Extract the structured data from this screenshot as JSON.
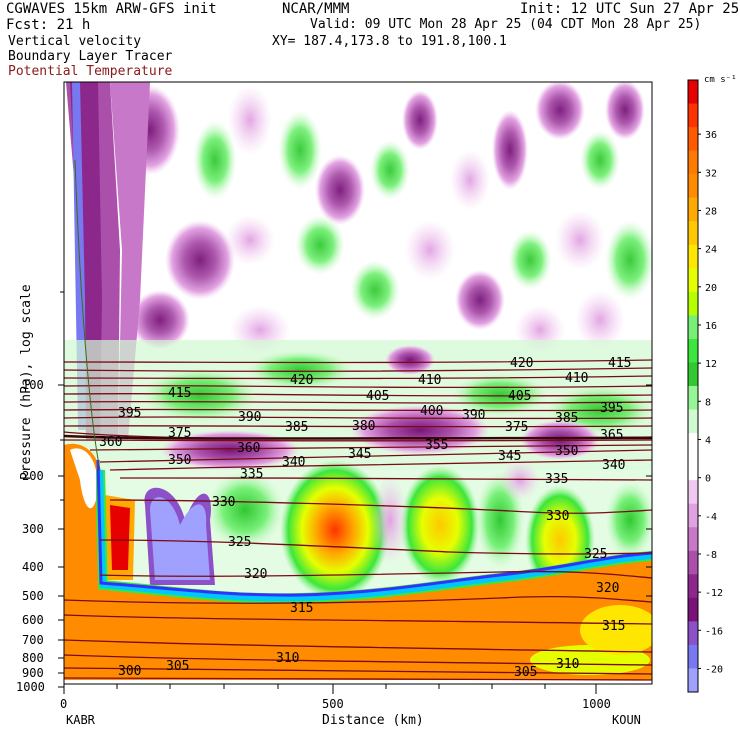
{
  "header": {
    "left_line1": "CGWAVES 15km ARW-GFS init",
    "left_line2": "Fcst:   21 h",
    "center_line1": "NCAR/MMM",
    "right_line1": "Init: 12 UTC Sun 27 Apr 25",
    "right_line2": "Valid: 09 UTC Mon 28 Apr 25 (04 CDT Mon 28 Apr 25)",
    "field1": "Vertical velocity",
    "field2": "Boundary Layer Tracer",
    "field3": "Potential Temperature",
    "xy": "XY= 187.4,173.8 to 191.8,100.1"
  },
  "colors": {
    "potential_temperature": "#7a0a14",
    "plot_border": "#000000"
  },
  "chart_data": {
    "type": "heatmap",
    "title": "CGWAVES 15km ARW-GFS init",
    "xlabel": "Distance (km)",
    "ylabel": "Pressure (hPa), log scale",
    "x_ticks": [
      "0",
      "500",
      "1000"
    ],
    "x_endpoints": {
      "left": "KABR",
      "right": "KOUN"
    },
    "y_ticks": [
      "100",
      "200",
      "300",
      "400",
      "500",
      "600",
      "700",
      "800",
      "900",
      "1000"
    ],
    "colorbar": {
      "unit": "cm s⁻¹",
      "labels": [
        "36",
        "32",
        "28",
        "24",
        "20",
        "16",
        "12",
        "8",
        "4",
        "0",
        "-4",
        "-8",
        "-12",
        "-16",
        "-20"
      ],
      "colors": [
        "#e60000",
        "#ff3300",
        "#ff5a00",
        "#ff7a00",
        "#ff8c00",
        "#ffaa00",
        "#ffc800",
        "#ffe600",
        "#e6ff00",
        "#b4ff00",
        "#78f078",
        "#3ce63c",
        "#32c832",
        "#96f596",
        "#d2fad2",
        "#ffffff",
        "#ffffff",
        "#f0c8f0",
        "#e1a0e1",
        "#c878c8",
        "#aa50aa",
        "#8c288c",
        "#781478",
        "#8c50c8",
        "#7878f0",
        "#a0a0ff"
      ]
    },
    "theta_contours": [
      {
        "label": "300",
        "text_x": "KABR side",
        "pressure": 860
      },
      {
        "label": "305",
        "pressure": 850
      },
      {
        "label": "310",
        "pressure": 820
      },
      {
        "label": "315",
        "pressure": 560
      },
      {
        "label": "320",
        "pressure": 420
      },
      {
        "label": "325",
        "pressure": 330
      },
      {
        "label": "330",
        "pressure": 250
      },
      {
        "label": "335",
        "pressure": 185
      },
      {
        "label": "340",
        "pressure": 170
      },
      {
        "label": "345",
        "pressure": 160
      },
      {
        "label": "350",
        "pressure": 165
      },
      {
        "label": "355",
        "pressure": 155
      },
      {
        "label": "360",
        "pressure": 152
      },
      {
        "label": "365",
        "pressure": 150
      },
      {
        "label": "375",
        "pressure": 130
      },
      {
        "label": "385",
        "pressure": 125
      },
      {
        "label": "390",
        "pressure": 118
      },
      {
        "label": "395",
        "pressure": 112
      },
      {
        "label": "400",
        "pressure": 115
      },
      {
        "label": "405",
        "pressure": 105
      },
      {
        "label": "410",
        "pressure": 95
      },
      {
        "label": "415",
        "pressure": 90
      },
      {
        "label": "420",
        "pressure": 85
      }
    ]
  }
}
